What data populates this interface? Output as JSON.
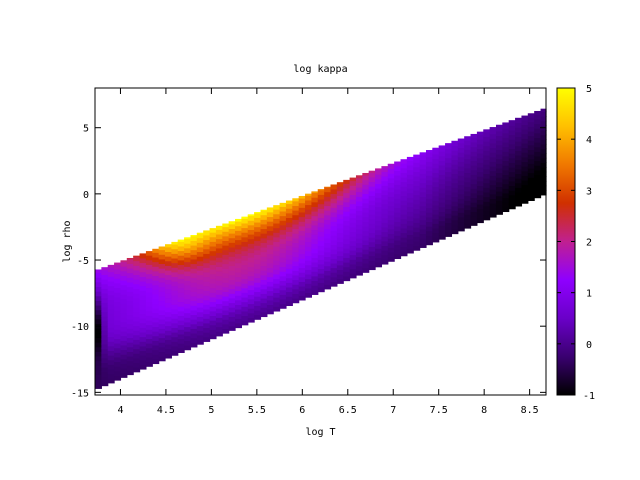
{
  "chart_data": {
    "type": "heatmap",
    "title": "log kappa",
    "xlabel": "log T",
    "ylabel": "log rho",
    "xlim": [
      3.72,
      8.68
    ],
    "ylim": [
      -15.2,
      8
    ],
    "xticks": [
      4,
      4.5,
      5,
      5.5,
      6,
      6.5,
      7,
      7.5,
      8,
      8.5
    ],
    "xtick_labels": [
      "4",
      "4.5",
      "5",
      "5.5",
      "6",
      "6.5",
      "7",
      "7.5",
      "8",
      "8.5"
    ],
    "yticks": [
      5,
      0,
      -5,
      -10,
      -15
    ],
    "ytick_labels": [
      "5",
      "0",
      "-5",
      "-10",
      "-15"
    ],
    "colorbar": {
      "range": [
        -1,
        5
      ],
      "ticks": [
        5,
        4,
        3,
        2,
        1,
        0,
        -1
      ],
      "tick_labels": [
        "5",
        "4",
        "3",
        "2",
        "1",
        "0",
        "-1"
      ],
      "palette": [
        "#000000",
        "#3a0070",
        "#6a00c8",
        "#8f00ff",
        "#c02090",
        "#d03000",
        "#f07800",
        "#ffc000",
        "#ffff00"
      ]
    },
    "grid": false,
    "domain_bounds": {
      "lower_edge": [
        [
          3.72,
          -14.8
        ],
        [
          8.68,
          0.0
        ]
      ],
      "upper_edge": [
        [
          3.72,
          -5.8
        ],
        [
          8.68,
          6.5
        ]
      ]
    },
    "features": {
      "peak": {
        "logT": 4.6,
        "logrho": -3.6,
        "logkappa": 5.0
      },
      "low_T_edge_min": {
        "logT": 3.75,
        "logrho": -10.5,
        "logkappa": -1.0
      },
      "high_T_value": -0.4
    }
  }
}
